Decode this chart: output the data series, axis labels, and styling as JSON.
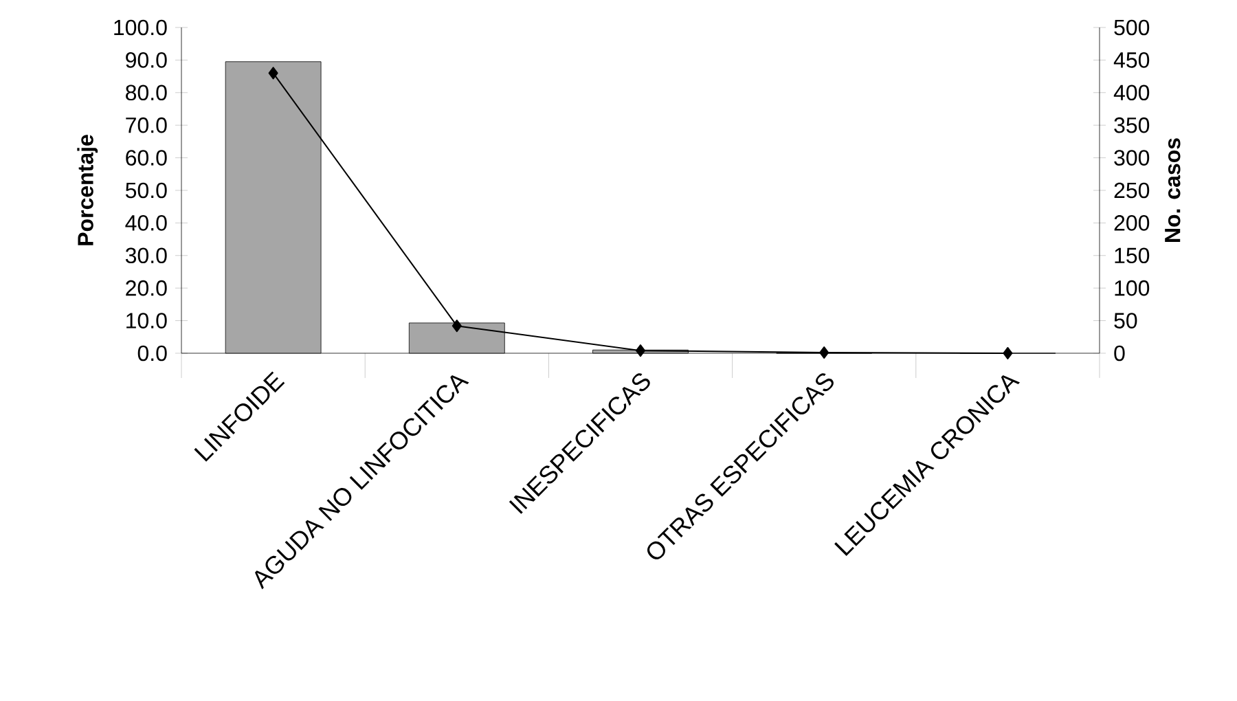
{
  "chart_data": {
    "type": "bar",
    "ylabel": "Porcentaje",
    "y2label": "No. casos",
    "categories": [
      "LINFOIDE",
      "AGUDA NO LINFOCITICA",
      "INESPECIFICAS",
      "OTRAS ESPECIFICAS",
      "LEUCEMIA CRONICA"
    ],
    "series": [
      {
        "color": "#a6a6a6",
        "values": [
          89.5,
          9.3,
          1.0,
          0,
          0
        ]
      },
      {
        "type": "line",
        "axis": "y2",
        "color": "#000000",
        "marker": "diamond",
        "values": [
          430,
          42,
          4,
          1,
          0
        ]
      }
    ],
    "ylim": [
      0,
      100
    ],
    "yticks": [
      {
        "value": 0,
        "label": "0.0"
      },
      {
        "value": 10,
        "label": "10.0"
      },
      {
        "value": 20,
        "label": "20.0"
      },
      {
        "value": 30,
        "label": "30.0"
      },
      {
        "value": 40,
        "label": "40.0"
      },
      {
        "value": 50,
        "label": "50.0"
      },
      {
        "value": 60,
        "label": "60.0"
      },
      {
        "value": 70,
        "label": "70.0"
      },
      {
        "value": 80,
        "label": "80.0"
      },
      {
        "value": 90,
        "label": "90.0"
      },
      {
        "value": 100,
        "label": "100.0"
      }
    ],
    "y2lim": [
      0,
      500
    ],
    "y2ticks": [
      0,
      50,
      100,
      150,
      200,
      250,
      300,
      350,
      400,
      450,
      500
    ]
  }
}
